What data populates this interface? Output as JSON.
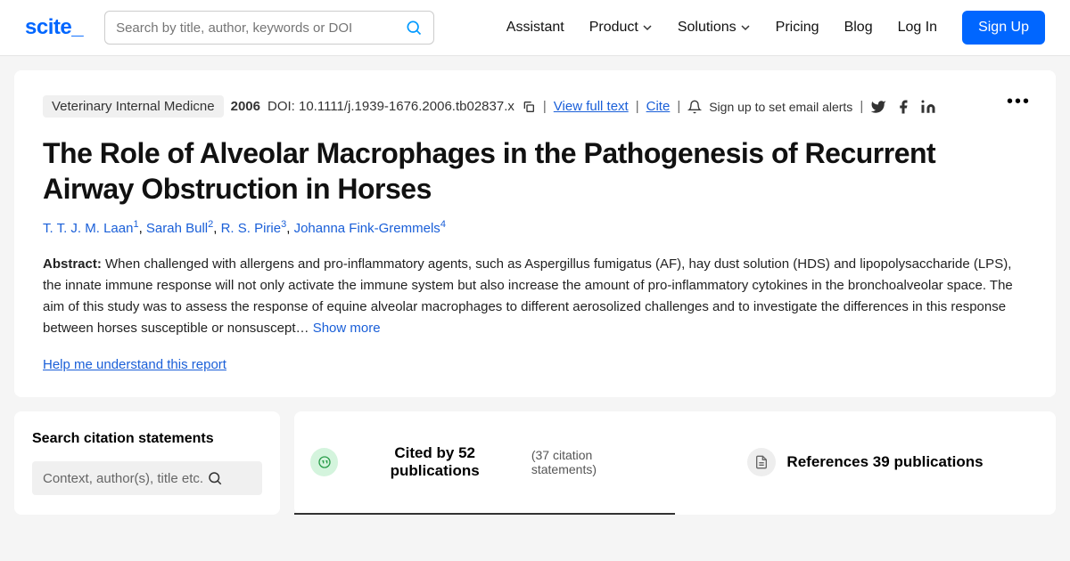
{
  "logo": "scite",
  "search": {
    "placeholder": "Search by title, author, keywords or DOI"
  },
  "nav": {
    "assistant": "Assistant",
    "product": "Product",
    "solutions": "Solutions",
    "pricing": "Pricing",
    "blog": "Blog",
    "login": "Log In",
    "signup": "Sign Up"
  },
  "paper": {
    "journal": "Veterinary Internal Medicne",
    "year": "2006",
    "doi_label": "DOI: 10.1111/j.1939-1676.2006.tb02837.x",
    "view_full": "View full text",
    "cite": "Cite",
    "alert": "Sign up to set email alerts",
    "title": "The Role of Alveolar Macrophages in the Pathogenesis of Recurrent Airway Obstruction in Horses",
    "authors": [
      {
        "name": "T. T. J. M. Laan",
        "sup": "1"
      },
      {
        "name": "Sarah Bull",
        "sup": "2"
      },
      {
        "name": "R. S. Pirie",
        "sup": "3"
      },
      {
        "name": "Johanna Fink-Gremmels",
        "sup": "4"
      }
    ],
    "abstract_label": "Abstract:",
    "abstract": " When challenged with allergens and pro-inflammatory agents, such as Aspergillus fumigatus (AF), hay dust solution (HDS) and lipopolysaccharide (LPS), the innate immune response will not only activate the immune system but also increase the amount of pro-inflammatory cytokines in the bronchoalveolar space. The aim of this study was to assess the response of equine alveolar macrophages to different aerosolized challenges and to investigate the differences in this response between horses susceptible or nonsuscept… ",
    "show_more": "Show more",
    "help": "Help me understand this report"
  },
  "sidebar": {
    "title": "Search citation statements",
    "filter_placeholder": "Context, author(s), title etc."
  },
  "tabs": {
    "cited": "Cited by 52 publications",
    "cited_sub": "(37 citation statements)",
    "refs": "References 39 publications"
  },
  "colors": {
    "primary": "#0066ff",
    "link": "#1a5fd8",
    "green_bg": "#d4f4dd"
  }
}
